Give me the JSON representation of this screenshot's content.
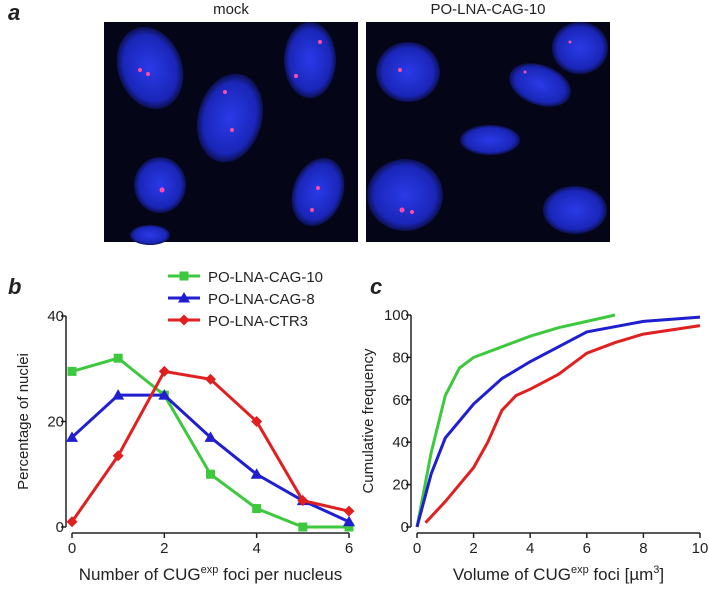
{
  "panel_labels": [
    "a",
    "b",
    "c"
  ],
  "image_titles": [
    "mock",
    "PO-LNA-CAG-10"
  ],
  "chart_data": [
    {
      "type": "line",
      "x": [
        0,
        1,
        2,
        3,
        4,
        5,
        6
      ],
      "xlabel": [
        "Number of CUG",
        "exp",
        " foci per nucleus"
      ],
      "ylabel": "Percentage of nuclei",
      "xlim": [
        0,
        6
      ],
      "xticks": [
        0,
        2,
        4,
        6
      ],
      "ylim": [
        0,
        40
      ],
      "yticks": [
        0,
        20,
        40
      ],
      "series": [
        {
          "name": "PO-LNA-CAG-10",
          "color": "#3ec83e",
          "marker": "square",
          "values": [
            29.5,
            32,
            25,
            10,
            3.5,
            0,
            0
          ]
        },
        {
          "name": "PO-LNA-CAG-8",
          "color": "#1f1fd0",
          "marker": "triangle",
          "values": [
            17,
            25,
            25,
            17,
            10,
            5,
            1
          ]
        },
        {
          "name": "PO-LNA-CTR3",
          "color": "#e02020",
          "marker": "diamond",
          "values": [
            1,
            13.5,
            29.5,
            28,
            20,
            5,
            3
          ]
        }
      ]
    },
    {
      "type": "line",
      "xlabel": [
        "Volume of CUG",
        "exp",
        " foci [µm",
        "3",
        "]"
      ],
      "ylabel": "Cumulative frequency",
      "xlim": [
        0,
        10
      ],
      "xticks": [
        0,
        2,
        4,
        6,
        8,
        10
      ],
      "ylim": [
        0,
        100
      ],
      "yticks": [
        0,
        20,
        40,
        60,
        80,
        100
      ],
      "series": [
        {
          "color": "#3ec83e",
          "x": [
            0,
            0.5,
            1,
            1.5,
            2,
            3,
            4,
            5,
            6,
            7
          ],
          "values": [
            0,
            35,
            62,
            75,
            80,
            85,
            90,
            94,
            97,
            100
          ]
        },
        {
          "color": "#1f1fd0",
          "x": [
            0,
            0.5,
            1,
            1.5,
            2,
            3,
            4,
            5,
            6,
            8,
            10
          ],
          "values": [
            0,
            25,
            42,
            50,
            58,
            70,
            78,
            85,
            92,
            97,
            99
          ]
        },
        {
          "color": "#e02020",
          "x": [
            0.3,
            1,
            1.5,
            2,
            2.5,
            3,
            3.5,
            4,
            5,
            6,
            7,
            8,
            10
          ],
          "values": [
            2,
            12,
            20,
            28,
            40,
            55,
            62,
            65,
            72,
            82,
            87,
            91,
            95
          ]
        }
      ]
    }
  ]
}
